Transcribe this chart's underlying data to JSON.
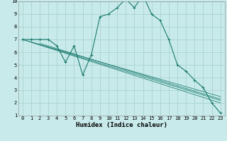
{
  "xlabel": "Humidex (Indice chaleur)",
  "bg_color": "#c8eaea",
  "grid_color": "#a8d4d0",
  "line_color": "#1a7a6e",
  "main_line": {
    "x": [
      0,
      1,
      2,
      3,
      4,
      5,
      6,
      7,
      8,
      9,
      10,
      11,
      12,
      13,
      14,
      15,
      16,
      17,
      18,
      19,
      20,
      21,
      22,
      23
    ],
    "y": [
      7,
      7,
      7,
      7,
      6.5,
      5.2,
      6.5,
      4.2,
      5.8,
      8.8,
      9.0,
      9.5,
      10.2,
      9.5,
      10.5,
      9.0,
      8.5,
      7.0,
      5.0,
      4.5,
      3.8,
      3.2,
      2.0,
      1.2
    ]
  },
  "regression_lines": [
    {
      "x": [
        0,
        23
      ],
      "y": [
        7.0,
        2.0
      ]
    },
    {
      "x": [
        0,
        23
      ],
      "y": [
        7.0,
        2.5
      ]
    },
    {
      "x": [
        1,
        23
      ],
      "y": [
        6.8,
        2.2
      ]
    },
    {
      "x": [
        2,
        23
      ],
      "y": [
        6.7,
        2.3
      ]
    }
  ],
  "xlim": [
    -0.5,
    23.5
  ],
  "ylim": [
    1,
    10
  ],
  "xticks": [
    0,
    1,
    2,
    3,
    4,
    5,
    6,
    7,
    8,
    9,
    10,
    11,
    12,
    13,
    14,
    15,
    16,
    17,
    18,
    19,
    20,
    21,
    22,
    23
  ],
  "yticks": [
    1,
    2,
    3,
    4,
    5,
    6,
    7,
    8,
    9,
    10
  ],
  "tick_fontsize": 5.0,
  "label_fontsize": 6.5
}
